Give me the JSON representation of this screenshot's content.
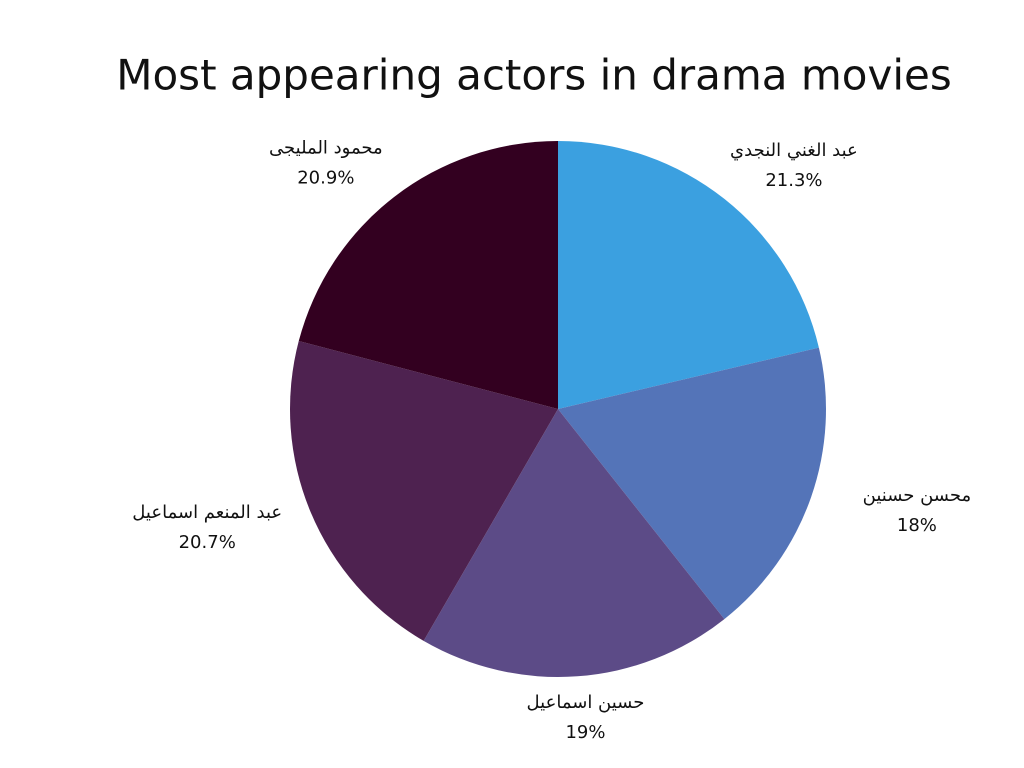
{
  "chart_data": {
    "type": "pie",
    "title": "Most appearing actors in drama movies",
    "categories": [
      "عبد الغني النجدي",
      "محسن حسنين",
      "حسين اسماعيل",
      "عبد المنعم اسماعيل",
      "محمود المليجى"
    ],
    "values": [
      21.3,
      18,
      19,
      20.7,
      20.9
    ],
    "value_labels": [
      "21.3%",
      "18%",
      "19%",
      "20.7%",
      "20.9%"
    ],
    "colors": [
      "#3ba0e0",
      "#5474b8",
      "#5c4b87",
      "#4e2250",
      "#330020"
    ]
  }
}
